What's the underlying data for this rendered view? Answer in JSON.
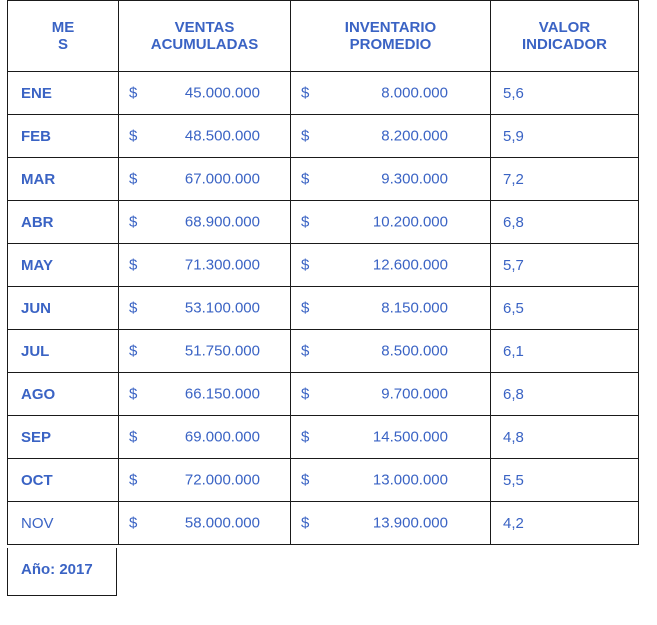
{
  "headers": {
    "month": [
      "ME",
      "S"
    ],
    "sales": [
      "VENTAS",
      "ACUMULADAS"
    ],
    "inventory": [
      "INVENTARIO",
      "PROMEDIO"
    ],
    "indicator": [
      "VALOR",
      "INDICADOR"
    ]
  },
  "currency_symbol": "$",
  "rows": [
    {
      "month": "ENE",
      "sales": "45.000.000",
      "inventory": "8.000.000",
      "indicator": "5,6"
    },
    {
      "month": "FEB",
      "sales": "48.500.000",
      "inventory": "8.200.000",
      "indicator": "5,9"
    },
    {
      "month": "MAR",
      "sales": "67.000.000",
      "inventory": "9.300.000",
      "indicator": "7,2"
    },
    {
      "month": "ABR",
      "sales": "68.900.000",
      "inventory": "10.200.000",
      "indicator": "6,8"
    },
    {
      "month": "MAY",
      "sales": "71.300.000",
      "inventory": "12.600.000",
      "indicator": "5,7"
    },
    {
      "month": "JUN",
      "sales": "53.100.000",
      "inventory": "8.150.000",
      "indicator": "6,5"
    },
    {
      "month": "JUL",
      "sales": "51.750.000",
      "inventory": "8.500.000",
      "indicator": "6,1"
    },
    {
      "month": "AGO",
      "sales": "66.150.000",
      "inventory": "9.700.000",
      "indicator": "6,8"
    },
    {
      "month": "SEP",
      "sales": "69.000.000",
      "inventory": "14.500.000",
      "indicator": "4,8"
    },
    {
      "month": "OCT",
      "sales": "72.000.000",
      "inventory": "13.000.000",
      "indicator": "5,5"
    },
    {
      "month": "NOV",
      "sales": "58.000.000",
      "inventory": "13.900.000",
      "indicator": "4,2"
    }
  ],
  "year_label": "Año: 2017",
  "colors": {
    "text": "#3a63c4",
    "border": "#1a1a1a"
  }
}
